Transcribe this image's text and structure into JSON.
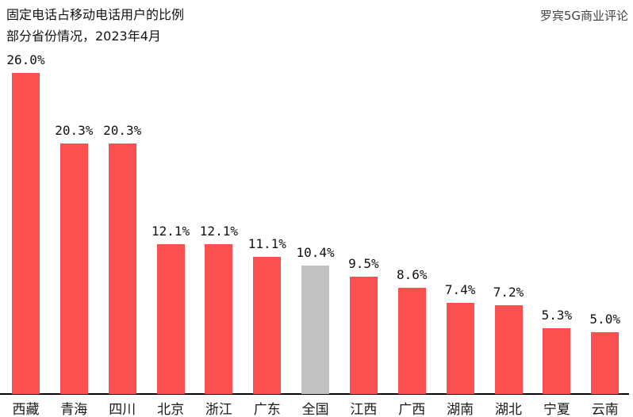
{
  "header": {
    "title_line1": "固定电话占移动电话用户的比例",
    "title_line2": "部分省份情况，2023年4月",
    "source": "罗宾5G商业评论"
  },
  "colors": {
    "bar": "#FB5050",
    "highlight_bar": "#C1C1C1",
    "axis": "#000000",
    "text": "#111111"
  },
  "chart_data": {
    "type": "bar",
    "title": "固定电话占移动电话用户的比例 部分省份情况，2023年4月",
    "source": "罗宾5G商业评论",
    "categories": [
      "西藏",
      "青海",
      "四川",
      "北京",
      "浙江",
      "广东",
      "全国",
      "江西",
      "广西",
      "湖南",
      "湖北",
      "宁夏",
      "云南"
    ],
    "values": [
      26.0,
      20.3,
      20.3,
      12.1,
      12.1,
      11.1,
      10.4,
      9.5,
      8.6,
      7.4,
      7.2,
      5.3,
      5.0
    ],
    "value_labels": [
      "26.0%",
      "20.3%",
      "20.3%",
      "12.1%",
      "12.1%",
      "11.1%",
      "10.4%",
      "9.5%",
      "8.6%",
      "7.4%",
      "7.2%",
      "5.3%",
      "5.0%"
    ],
    "highlight_category": "全国",
    "highlight_index": 6,
    "unit": "%",
    "ylim": [
      0,
      26
    ],
    "grid": false,
    "legend": false,
    "xlabel": "",
    "ylabel": ""
  }
}
